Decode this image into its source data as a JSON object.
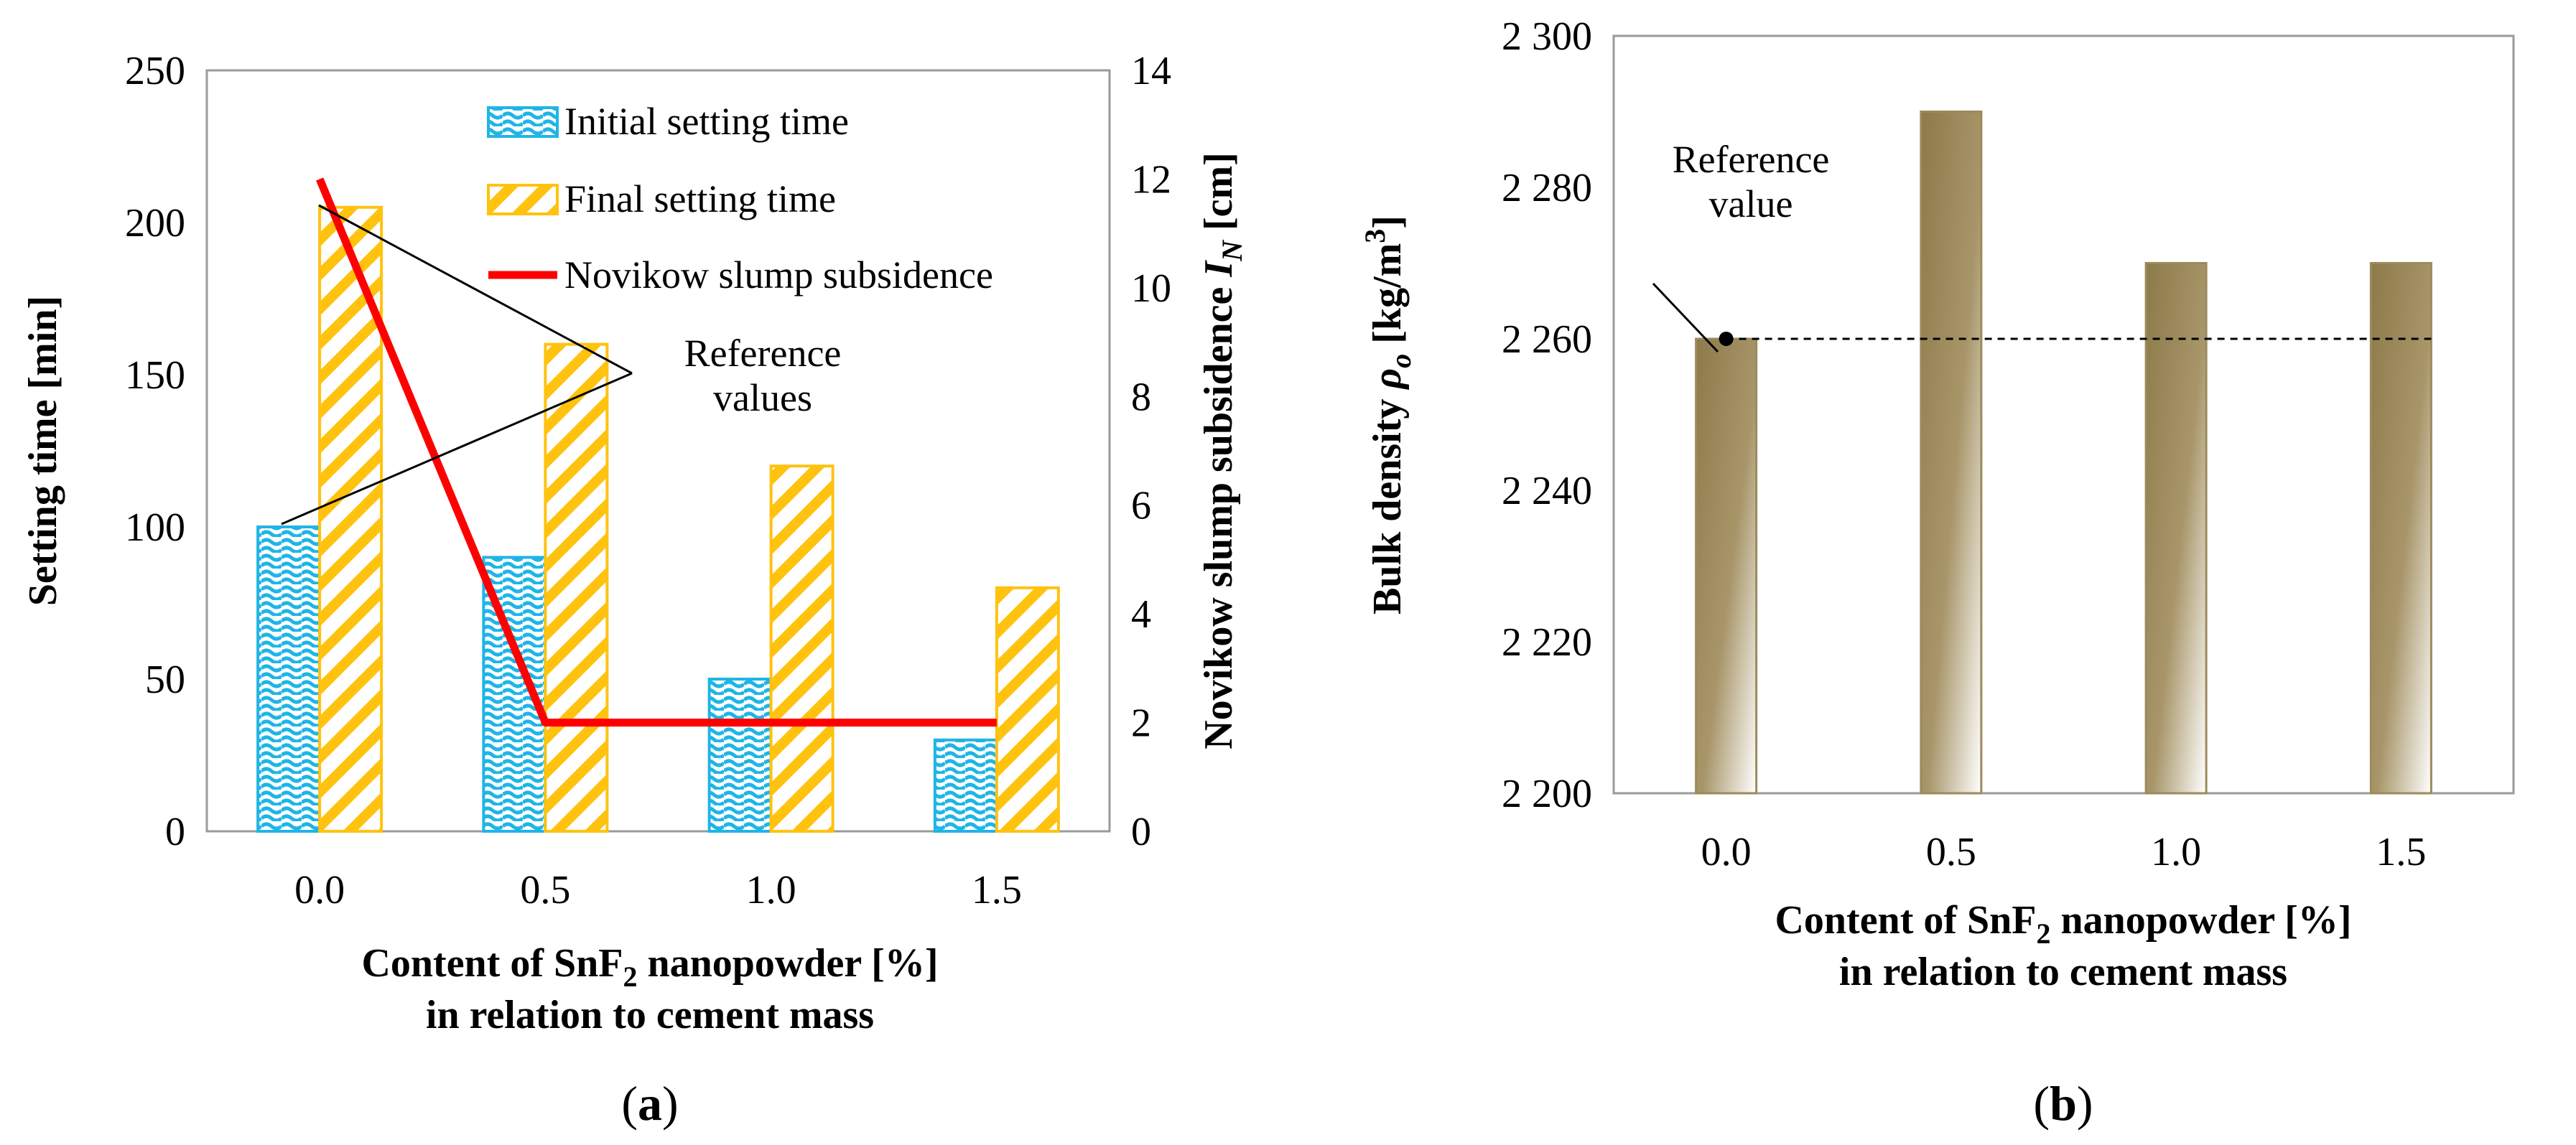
{
  "chart_data": [
    {
      "type": "bar",
      "panel_label": "a",
      "categories": [
        "0.0",
        "0.5",
        "1.0",
        "1.5"
      ],
      "series": [
        {
          "name": "Initial setting time",
          "values": [
            100,
            90,
            50,
            30
          ],
          "axis": "left",
          "color": "#1fb5e6"
        },
        {
          "name": "Final setting time",
          "values": [
            205,
            160,
            120,
            80
          ],
          "axis": "left",
          "color": "#ffc20e"
        },
        {
          "name": "Novikow slump subsidence",
          "type": "line",
          "values": [
            12,
            2,
            2,
            2
          ],
          "axis": "right",
          "color": "#ff0000"
        }
      ],
      "ylabel": "Setting time [min]",
      "y2label_text": "Novikow slump subsidence ",
      "y2label_var": "I",
      "y2label_sub": "N",
      "y2label_unit": " [cm]",
      "xlabel_line1": "Content of SnF",
      "xlabel_sub": "2",
      "xlabel_line1_rest": " nanopowder [%]",
      "xlabel_line2": "in relation to cement mass",
      "ylim": [
        0,
        250
      ],
      "yticks": [
        "0",
        "50",
        "100",
        "150",
        "200",
        "250"
      ],
      "y2lim": [
        0,
        14
      ],
      "y2ticks": [
        "0",
        "2",
        "4",
        "6",
        "8",
        "10",
        "12",
        "14"
      ],
      "annotation_line1": "Reference",
      "annotation_line2": "values"
    },
    {
      "type": "bar",
      "panel_label": "b",
      "categories": [
        "0.0",
        "0.5",
        "1.0",
        "1.5"
      ],
      "values": [
        2260,
        2290,
        2270,
        2270
      ],
      "bar_color": "#9c8a5c",
      "reference_value": 2260,
      "ylabel_text": "Bulk density ",
      "ylabel_var": "ρ",
      "ylabel_sub": "o",
      "ylabel_unit": " [kg/m",
      "ylabel_sup": "3",
      "ylabel_close": "]",
      "xlabel_line1": "Content of SnF",
      "xlabel_sub": "2",
      "xlabel_line1_rest": " nanopowder [%]",
      "xlabel_line2": "in relation to cement mass",
      "ylim": [
        2200,
        2300
      ],
      "yticks": [
        "2 200",
        "2 220",
        "2 240",
        "2 260",
        "2 280",
        "2 300"
      ],
      "annotation_line1": "Reference",
      "annotation_line2": "value"
    }
  ]
}
